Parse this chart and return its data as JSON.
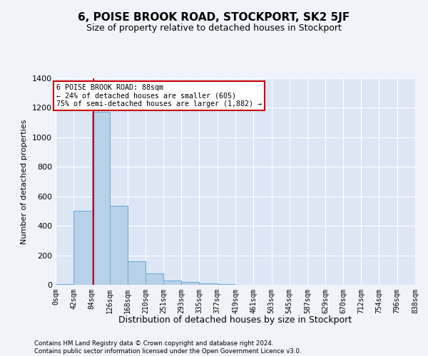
{
  "title": "6, POISE BROOK ROAD, STOCKPORT, SK2 5JF",
  "subtitle": "Size of property relative to detached houses in Stockport",
  "xlabel": "Distribution of detached houses by size in Stockport",
  "ylabel": "Number of detached properties",
  "bar_edges": [
    0,
    42,
    84,
    126,
    168,
    210,
    251,
    293,
    335,
    377,
    419,
    461,
    503,
    545,
    587,
    629,
    670,
    712,
    754,
    796,
    838
  ],
  "bar_heights": [
    5,
    500,
    1175,
    535,
    160,
    75,
    30,
    20,
    10,
    5,
    2,
    0,
    0,
    0,
    0,
    0,
    0,
    0,
    0,
    0
  ],
  "bar_color": "#b8d0e8",
  "bar_edgecolor": "#6aaad4",
  "property_size": 88,
  "property_label": "6 POISE BROOK ROAD: 88sqm",
  "annotation_line1": "← 24% of detached houses are smaller (605)",
  "annotation_line2": "75% of semi-detached houses are larger (1,882) →",
  "vline_color": "#cc0000",
  "annotation_box_edgecolor": "#cc0000",
  "ylim": [
    0,
    1400
  ],
  "yticks": [
    0,
    200,
    400,
    600,
    800,
    1000,
    1200,
    1400
  ],
  "tick_labels": [
    "0sqm",
    "42sqm",
    "84sqm",
    "126sqm",
    "168sqm",
    "210sqm",
    "251sqm",
    "293sqm",
    "335sqm",
    "377sqm",
    "419sqm",
    "461sqm",
    "503sqm",
    "545sqm",
    "587sqm",
    "629sqm",
    "670sqm",
    "712sqm",
    "754sqm",
    "796sqm",
    "838sqm"
  ],
  "footer_line1": "Contains HM Land Registry data © Crown copyright and database right 2024.",
  "footer_line2": "Contains public sector information licensed under the Open Government Licence v3.0.",
  "background_color": "#f0f4fa",
  "plot_background_color": "#dce6f5",
  "title_fontsize": 11,
  "subtitle_fontsize": 9,
  "ylabel_fontsize": 8,
  "xlabel_fontsize": 9,
  "ytick_fontsize": 8,
  "xtick_fontsize": 7
}
